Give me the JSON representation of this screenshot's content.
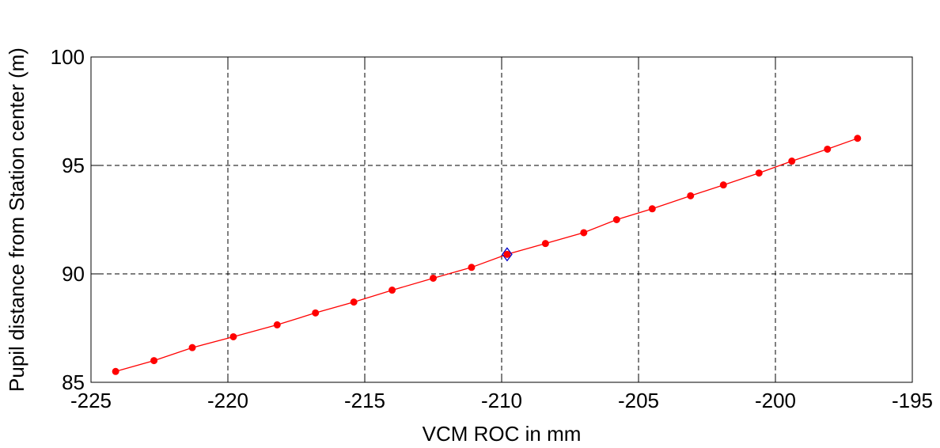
{
  "chart_data": {
    "type": "line",
    "title": "",
    "xlabel": "VCM ROC in mm",
    "ylabel": "Pupil distance from Station center (m)",
    "xlim": [
      -225,
      -195
    ],
    "ylim": [
      85,
      100
    ],
    "x_ticks": [
      -225,
      -220,
      -215,
      -210,
      -205,
      -200,
      -195
    ],
    "y_ticks": [
      85,
      90,
      95,
      100
    ],
    "x_tick_labels": [
      "-225",
      "-220",
      "-215",
      "-210",
      "-205",
      "-200",
      "-195"
    ],
    "y_tick_labels": [
      "85",
      "90",
      "95",
      "100"
    ],
    "grid": true,
    "series": [
      {
        "color": "#ff0000",
        "marker": "circle",
        "x": [
          -224.1,
          -222.7,
          -221.3,
          -219.8,
          -218.2,
          -216.8,
          -215.4,
          -214.0,
          -212.5,
          -211.1,
          -209.8,
          -208.4,
          -207.0,
          -205.8,
          -204.5,
          -203.1,
          -201.9,
          -200.6,
          -199.4,
          -198.1,
          -197.0
        ],
        "y": [
          85.5,
          86.0,
          86.6,
          87.1,
          87.65,
          88.2,
          88.7,
          89.25,
          89.8,
          90.3,
          90.9,
          91.4,
          91.9,
          92.5,
          93.0,
          93.6,
          94.1,
          94.65,
          95.2,
          95.75,
          96.25
        ]
      }
    ],
    "highlight": {
      "x": -209.8,
      "y": 90.9,
      "marker": "diamond",
      "color": "#0000cc"
    }
  }
}
